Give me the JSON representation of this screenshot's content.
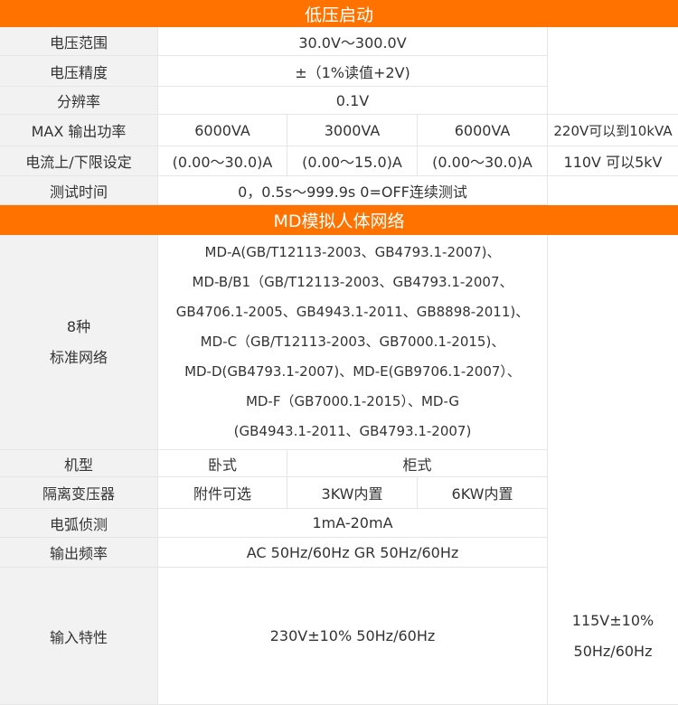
{
  "sections": {
    "low_voltage": "低压启动",
    "md": "MD模拟人体网络"
  },
  "rows": {
    "voltage_range": {
      "label": "电压范围",
      "value": "30.0V～300.0V"
    },
    "voltage_accuracy": {
      "label": "电压精度",
      "value": "±（1%读值+2V)"
    },
    "resolution": {
      "label": "分辨率",
      "value": "0.1V"
    },
    "max_power": {
      "label": "MAX 输出功率",
      "values": [
        "6000VA",
        "3000VA",
        "6000VA",
        "220V可以到10kVA"
      ]
    },
    "current_limit": {
      "label": "电流上/下限设定",
      "values": [
        "(0.00～30.0)A",
        "(0.00～15.0)A",
        "(0.00～30.0)A",
        "110V 可以5kV"
      ]
    },
    "test_time": {
      "label": "测试时间",
      "value": "0，0.5s～999.9s 0=OFF连续测试"
    },
    "networks": {
      "label": [
        "8种",
        "标准网络"
      ],
      "lines": [
        "MD-A(GB/T12113-2003、GB4793.1-2007)、",
        "MD-B/B1（GB/T12113-2003、GB4793.1-2007、",
        "GB4706.1-2005、GB4943.1-2011、GB8898-2011)、",
        "MD-C（GB/T12113-2003、GB7000.1-2015)、",
        "MD-D(GB4793.1-2007)、MD-E(GB9706.1-2007）、",
        "MD-F（GB7000.1-2015）、MD-G",
        "(GB4943.1-2011、GB4793.1-2007)"
      ]
    },
    "model": {
      "label": "机型",
      "values": [
        "卧式",
        "柜式"
      ]
    },
    "isolation": {
      "label": "隔离变压器",
      "values": [
        "附件可选",
        "3KW内置",
        "6KW内置"
      ]
    },
    "arc": {
      "label": "电弧侦测",
      "value": "1mA-20mA"
    },
    "freq": {
      "label": "输出频率",
      "value": "AC 50Hz/60Hz GR 50Hz/60Hz"
    },
    "input": {
      "label": "输入特性",
      "value": "230V±10% 50Hz/60Hz",
      "value2": [
        "115V±10%",
        "50Hz/60Hz"
      ]
    }
  },
  "colors": {
    "accent": "#ff7200",
    "label_bg": "#f2f2f2"
  }
}
